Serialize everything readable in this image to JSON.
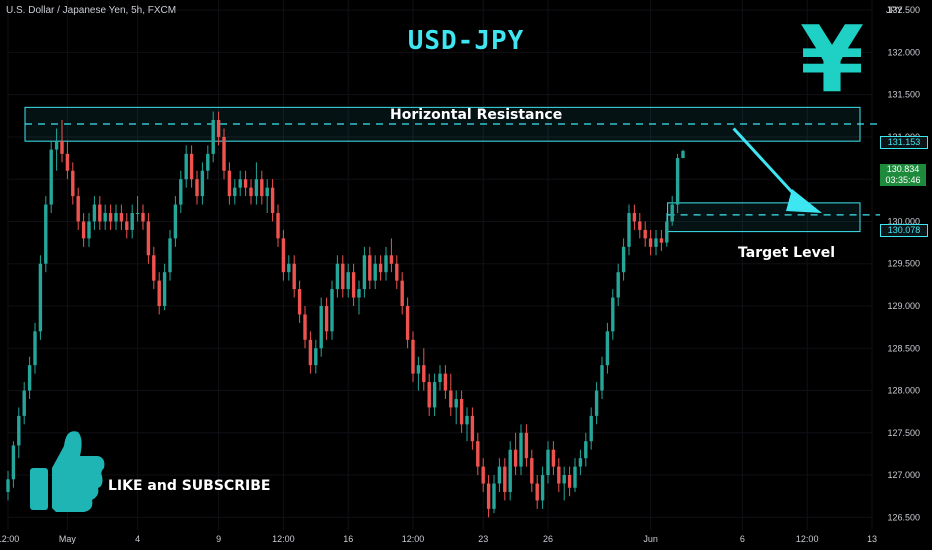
{
  "header": {
    "symbol": "U.S. Dollar / Japanese Yen, 5h, FXCM",
    "title": "USD-JPY",
    "yen_symbol": "¥",
    "axis_unit": "JPY"
  },
  "annotations": {
    "resistance": "Horizontal Resistance",
    "target": "Target Level",
    "cta": "LIKE and SUBSCRIBE"
  },
  "price_labels": {
    "resistance": "131.153",
    "last": "130.834",
    "countdown": "03:35:46",
    "target": "130.078"
  },
  "colors": {
    "up": "#26a69a",
    "down": "#ef5350",
    "accent": "#3ee6f2",
    "yen": "#1fd0c4",
    "thumb": "#1fb5b5"
  },
  "icons": [
    "yen-icon",
    "thumbs-up-icon",
    "arrow-icon"
  ],
  "chart_data": {
    "type": "candlestick",
    "title": "USD-JPY",
    "xlabel": "",
    "ylabel": "JPY",
    "ylim": [
      126.35,
      132.62
    ],
    "y_ticks": [
      126.5,
      127.0,
      127.5,
      128.0,
      128.5,
      129.0,
      129.5,
      130.0,
      130.5,
      131.0,
      131.5,
      132.0,
      132.5
    ],
    "x_ticks": [
      {
        "label": "12:00",
        "i": 0
      },
      {
        "label": "May",
        "i": 11
      },
      {
        "label": "4",
        "i": 24
      },
      {
        "label": "9",
        "i": 39
      },
      {
        "label": "12:00",
        "i": 51
      },
      {
        "label": "16",
        "i": 63
      },
      {
        "label": "12:00",
        "i": 75
      },
      {
        "label": "23",
        "i": 88
      },
      {
        "label": "26",
        "i": 100
      },
      {
        "label": "Jun",
        "i": 119
      },
      {
        "label": "6",
        "i": 136
      },
      {
        "label": "12:00",
        "i": 148
      },
      {
        "label": "13",
        "i": 160
      }
    ],
    "zones": [
      {
        "name": "Horizontal Resistance",
        "from": 130.95,
        "to": 131.35,
        "level": 131.153,
        "i_start": 0,
        "i_end": 164
      },
      {
        "name": "Target Level",
        "from": 129.88,
        "to": 130.22,
        "level": 130.078,
        "i_start": 119,
        "i_end": 159
      }
    ],
    "arrow": {
      "from": {
        "i": 134,
        "price": 131.1
      },
      "to": {
        "i": 150,
        "price": 130.1
      }
    },
    "candles": [
      {
        "o": 126.8,
        "h": 127.05,
        "l": 126.7,
        "c": 126.95
      },
      {
        "o": 126.95,
        "h": 127.4,
        "l": 126.85,
        "c": 127.35
      },
      {
        "o": 127.35,
        "h": 127.8,
        "l": 127.2,
        "c": 127.7
      },
      {
        "o": 127.7,
        "h": 128.1,
        "l": 127.6,
        "c": 128.0
      },
      {
        "o": 128.0,
        "h": 128.4,
        "l": 127.9,
        "c": 128.3
      },
      {
        "o": 128.3,
        "h": 128.8,
        "l": 128.2,
        "c": 128.7
      },
      {
        "o": 128.7,
        "h": 129.6,
        "l": 128.6,
        "c": 129.5
      },
      {
        "o": 129.5,
        "h": 130.3,
        "l": 129.4,
        "c": 130.2
      },
      {
        "o": 130.2,
        "h": 130.95,
        "l": 130.1,
        "c": 130.85
      },
      {
        "o": 130.85,
        "h": 131.1,
        "l": 130.6,
        "c": 130.95
      },
      {
        "o": 130.95,
        "h": 131.2,
        "l": 130.7,
        "c": 130.8
      },
      {
        "o": 130.8,
        "h": 130.95,
        "l": 130.5,
        "c": 130.6
      },
      {
        "o": 130.6,
        "h": 130.7,
        "l": 130.2,
        "c": 130.3
      },
      {
        "o": 130.3,
        "h": 130.4,
        "l": 129.9,
        "c": 130.0
      },
      {
        "o": 130.0,
        "h": 130.1,
        "l": 129.7,
        "c": 129.8
      },
      {
        "o": 129.8,
        "h": 130.1,
        "l": 129.7,
        "c": 130.0
      },
      {
        "o": 130.0,
        "h": 130.3,
        "l": 129.9,
        "c": 130.2
      },
      {
        "o": 130.2,
        "h": 130.3,
        "l": 129.9,
        "c": 130.0
      },
      {
        "o": 130.0,
        "h": 130.2,
        "l": 129.9,
        "c": 130.1
      },
      {
        "o": 130.1,
        "h": 130.2,
        "l": 129.9,
        "c": 130.0
      },
      {
        "o": 130.0,
        "h": 130.2,
        "l": 129.9,
        "c": 130.1
      },
      {
        "o": 130.1,
        "h": 130.2,
        "l": 129.9,
        "c": 130.0
      },
      {
        "o": 130.0,
        "h": 130.1,
        "l": 129.8,
        "c": 129.9
      },
      {
        "o": 129.9,
        "h": 130.2,
        "l": 129.8,
        "c": 130.1
      },
      {
        "o": 130.1,
        "h": 130.3,
        "l": 130.0,
        "c": 130.1
      },
      {
        "o": 130.1,
        "h": 130.2,
        "l": 129.9,
        "c": 130.0
      },
      {
        "o": 130.0,
        "h": 130.1,
        "l": 129.5,
        "c": 129.6
      },
      {
        "o": 129.6,
        "h": 129.7,
        "l": 129.2,
        "c": 129.3
      },
      {
        "o": 129.3,
        "h": 129.4,
        "l": 128.9,
        "c": 129.0
      },
      {
        "o": 129.0,
        "h": 129.5,
        "l": 128.95,
        "c": 129.4
      },
      {
        "o": 129.4,
        "h": 129.9,
        "l": 129.3,
        "c": 129.8
      },
      {
        "o": 129.8,
        "h": 130.3,
        "l": 129.7,
        "c": 130.2
      },
      {
        "o": 130.2,
        "h": 130.6,
        "l": 130.1,
        "c": 130.5
      },
      {
        "o": 130.5,
        "h": 130.9,
        "l": 130.4,
        "c": 130.8
      },
      {
        "o": 130.8,
        "h": 130.9,
        "l": 130.4,
        "c": 130.5
      },
      {
        "o": 130.5,
        "h": 130.6,
        "l": 130.2,
        "c": 130.3
      },
      {
        "o": 130.3,
        "h": 130.7,
        "l": 130.2,
        "c": 130.6
      },
      {
        "o": 130.6,
        "h": 130.9,
        "l": 130.5,
        "c": 130.8
      },
      {
        "o": 130.8,
        "h": 131.3,
        "l": 130.7,
        "c": 131.2
      },
      {
        "o": 131.2,
        "h": 131.3,
        "l": 130.9,
        "c": 131.0
      },
      {
        "o": 131.0,
        "h": 131.1,
        "l": 130.5,
        "c": 130.6
      },
      {
        "o": 130.6,
        "h": 130.7,
        "l": 130.2,
        "c": 130.3
      },
      {
        "o": 130.3,
        "h": 130.5,
        "l": 130.2,
        "c": 130.4
      },
      {
        "o": 130.4,
        "h": 130.6,
        "l": 130.3,
        "c": 130.5
      },
      {
        "o": 130.5,
        "h": 130.6,
        "l": 130.3,
        "c": 130.4
      },
      {
        "o": 130.4,
        "h": 130.5,
        "l": 130.2,
        "c": 130.3
      },
      {
        "o": 130.3,
        "h": 130.7,
        "l": 130.2,
        "c": 130.5
      },
      {
        "o": 130.5,
        "h": 130.6,
        "l": 130.2,
        "c": 130.3
      },
      {
        "o": 130.3,
        "h": 130.5,
        "l": 130.1,
        "c": 130.4
      },
      {
        "o": 130.4,
        "h": 130.5,
        "l": 130.0,
        "c": 130.1
      },
      {
        "o": 130.1,
        "h": 130.2,
        "l": 129.7,
        "c": 129.8
      },
      {
        "o": 129.8,
        "h": 129.9,
        "l": 129.3,
        "c": 129.4
      },
      {
        "o": 129.4,
        "h": 129.6,
        "l": 129.3,
        "c": 129.5
      },
      {
        "o": 129.5,
        "h": 129.6,
        "l": 129.1,
        "c": 129.2
      },
      {
        "o": 129.2,
        "h": 129.3,
        "l": 128.8,
        "c": 128.9
      },
      {
        "o": 128.9,
        "h": 129.0,
        "l": 128.5,
        "c": 128.6
      },
      {
        "o": 128.6,
        "h": 128.7,
        "l": 128.2,
        "c": 128.3
      },
      {
        "o": 128.3,
        "h": 128.6,
        "l": 128.2,
        "c": 128.5
      },
      {
        "o": 128.5,
        "h": 129.1,
        "l": 128.4,
        "c": 129.0
      },
      {
        "o": 129.0,
        "h": 129.1,
        "l": 128.6,
        "c": 128.7
      },
      {
        "o": 128.7,
        "h": 129.3,
        "l": 128.6,
        "c": 129.2
      },
      {
        "o": 129.2,
        "h": 129.6,
        "l": 129.1,
        "c": 129.5
      },
      {
        "o": 129.5,
        "h": 129.6,
        "l": 129.1,
        "c": 129.2
      },
      {
        "o": 129.2,
        "h": 129.5,
        "l": 129.1,
        "c": 129.4
      },
      {
        "o": 129.4,
        "h": 129.5,
        "l": 129.0,
        "c": 129.1
      },
      {
        "o": 129.1,
        "h": 129.3,
        "l": 128.9,
        "c": 129.2
      },
      {
        "o": 129.2,
        "h": 129.7,
        "l": 129.1,
        "c": 129.6
      },
      {
        "o": 129.6,
        "h": 129.7,
        "l": 129.2,
        "c": 129.3
      },
      {
        "o": 129.3,
        "h": 129.6,
        "l": 129.2,
        "c": 129.5
      },
      {
        "o": 129.5,
        "h": 129.6,
        "l": 129.3,
        "c": 129.4
      },
      {
        "o": 129.4,
        "h": 129.7,
        "l": 129.3,
        "c": 129.6
      },
      {
        "o": 129.6,
        "h": 129.8,
        "l": 129.4,
        "c": 129.5
      },
      {
        "o": 129.5,
        "h": 129.6,
        "l": 129.2,
        "c": 129.3
      },
      {
        "o": 129.3,
        "h": 129.4,
        "l": 128.9,
        "c": 129.0
      },
      {
        "o": 129.0,
        "h": 129.1,
        "l": 128.5,
        "c": 128.6
      },
      {
        "o": 128.6,
        "h": 128.7,
        "l": 128.1,
        "c": 128.2
      },
      {
        "o": 128.2,
        "h": 128.4,
        "l": 128.0,
        "c": 128.3
      },
      {
        "o": 128.3,
        "h": 128.5,
        "l": 128.0,
        "c": 128.1
      },
      {
        "o": 128.1,
        "h": 128.2,
        "l": 127.7,
        "c": 127.8
      },
      {
        "o": 127.8,
        "h": 128.2,
        "l": 127.7,
        "c": 128.1
      },
      {
        "o": 128.1,
        "h": 128.3,
        "l": 128.0,
        "c": 128.2
      },
      {
        "o": 128.2,
        "h": 128.3,
        "l": 127.9,
        "c": 128.0
      },
      {
        "o": 128.0,
        "h": 128.2,
        "l": 127.7,
        "c": 127.8
      },
      {
        "o": 127.8,
        "h": 128.0,
        "l": 127.6,
        "c": 127.9
      },
      {
        "o": 127.9,
        "h": 128.0,
        "l": 127.5,
        "c": 127.6
      },
      {
        "o": 127.6,
        "h": 127.8,
        "l": 127.4,
        "c": 127.7
      },
      {
        "o": 127.7,
        "h": 127.8,
        "l": 127.3,
        "c": 127.4
      },
      {
        "o": 127.4,
        "h": 127.5,
        "l": 127.0,
        "c": 127.1
      },
      {
        "o": 127.1,
        "h": 127.2,
        "l": 126.8,
        "c": 126.9
      },
      {
        "o": 126.9,
        "h": 127.0,
        "l": 126.5,
        "c": 126.6
      },
      {
        "o": 126.6,
        "h": 127.0,
        "l": 126.55,
        "c": 126.9
      },
      {
        "o": 126.9,
        "h": 127.2,
        "l": 126.8,
        "c": 127.1
      },
      {
        "o": 127.1,
        "h": 127.2,
        "l": 126.7,
        "c": 126.8
      },
      {
        "o": 126.8,
        "h": 127.4,
        "l": 126.7,
        "c": 127.3
      },
      {
        "o": 127.3,
        "h": 127.5,
        "l": 127.0,
        "c": 127.1
      },
      {
        "o": 127.1,
        "h": 127.6,
        "l": 127.0,
        "c": 127.5
      },
      {
        "o": 127.5,
        "h": 127.6,
        "l": 127.1,
        "c": 127.2
      },
      {
        "o": 127.2,
        "h": 127.3,
        "l": 126.8,
        "c": 126.9
      },
      {
        "o": 126.9,
        "h": 127.0,
        "l": 126.6,
        "c": 126.7
      },
      {
        "o": 126.7,
        "h": 127.1,
        "l": 126.6,
        "c": 127.0
      },
      {
        "o": 127.0,
        "h": 127.4,
        "l": 126.9,
        "c": 127.3
      },
      {
        "o": 127.3,
        "h": 127.4,
        "l": 127.0,
        "c": 127.1
      },
      {
        "o": 127.1,
        "h": 127.2,
        "l": 126.8,
        "c": 126.9
      },
      {
        "o": 126.9,
        "h": 127.1,
        "l": 126.7,
        "c": 127.0
      },
      {
        "o": 127.0,
        "h": 127.1,
        "l": 126.75,
        "c": 126.85
      },
      {
        "o": 126.85,
        "h": 127.2,
        "l": 126.8,
        "c": 127.1
      },
      {
        "o": 127.1,
        "h": 127.3,
        "l": 127.0,
        "c": 127.2
      },
      {
        "o": 127.2,
        "h": 127.5,
        "l": 127.1,
        "c": 127.4
      },
      {
        "o": 127.4,
        "h": 127.8,
        "l": 127.3,
        "c": 127.7
      },
      {
        "o": 127.7,
        "h": 128.1,
        "l": 127.6,
        "c": 128.0
      },
      {
        "o": 128.0,
        "h": 128.4,
        "l": 127.9,
        "c": 128.3
      },
      {
        "o": 128.3,
        "h": 128.8,
        "l": 128.2,
        "c": 128.7
      },
      {
        "o": 128.7,
        "h": 129.2,
        "l": 128.6,
        "c": 129.1
      },
      {
        "o": 129.1,
        "h": 129.5,
        "l": 129.0,
        "c": 129.4
      },
      {
        "o": 129.4,
        "h": 129.8,
        "l": 129.3,
        "c": 129.7
      },
      {
        "o": 129.7,
        "h": 130.2,
        "l": 129.6,
        "c": 130.1
      },
      {
        "o": 130.1,
        "h": 130.2,
        "l": 129.9,
        "c": 130.0
      },
      {
        "o": 130.0,
        "h": 130.1,
        "l": 129.8,
        "c": 129.9
      },
      {
        "o": 129.9,
        "h": 130.0,
        "l": 129.7,
        "c": 129.8
      },
      {
        "o": 129.8,
        "h": 129.9,
        "l": 129.6,
        "c": 129.7
      },
      {
        "o": 129.7,
        "h": 129.9,
        "l": 129.6,
        "c": 129.8
      },
      {
        "o": 129.8,
        "h": 129.9,
        "l": 129.65,
        "c": 129.75
      },
      {
        "o": 129.75,
        "h": 130.1,
        "l": 129.7,
        "c": 130.0
      },
      {
        "o": 130.0,
        "h": 130.3,
        "l": 129.95,
        "c": 130.2
      },
      {
        "o": 130.2,
        "h": 130.8,
        "l": 130.1,
        "c": 130.75
      },
      {
        "o": 130.75,
        "h": 130.85,
        "l": 130.75,
        "c": 130.834
      }
    ]
  }
}
